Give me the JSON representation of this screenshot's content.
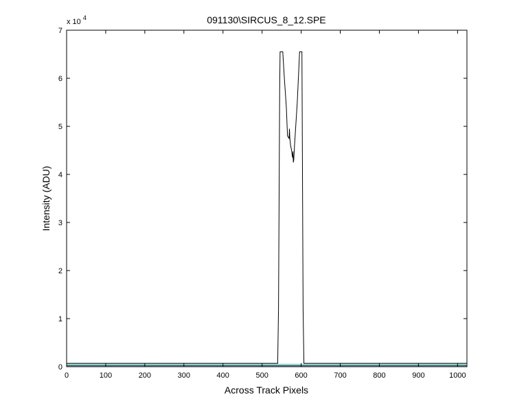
{
  "chart_data": {
    "type": "line",
    "title": "091130\\SIRCUS_8_12.SPE",
    "xlabel": "Across Track Pixels",
    "ylabel": "Intensity (ADU)",
    "y_exponent_base": "x 10",
    "y_exponent_power": "4",
    "xlim": [
      0,
      1024
    ],
    "ylim": [
      0,
      70000
    ],
    "x_ticks": [
      0,
      100,
      200,
      300,
      400,
      500,
      600,
      700,
      800,
      900,
      1000
    ],
    "y_ticks": [
      0,
      1,
      2,
      3,
      4,
      5,
      6,
      7
    ],
    "y_tick_scale": 10000,
    "grid": false,
    "colors": {
      "background": "#ffffff",
      "axes": "#000000",
      "series_main": "#000000",
      "series_baseline": "#00c8d2"
    },
    "series": [
      {
        "color": "#000000",
        "x": [
          0,
          540,
          542,
          545,
          546,
          548,
          553,
          557,
          562,
          565,
          569,
          570,
          571,
          573,
          575,
          577,
          578,
          579,
          580,
          581,
          583,
          590,
          596,
          598,
          602,
          605,
          607,
          608,
          1024
        ],
        "y": [
          700,
          700,
          12000,
          58000,
          65500,
          65500,
          65500,
          60000,
          54000,
          48000,
          47500,
          49500,
          47500,
          46000,
          45200,
          44000,
          43500,
          44800,
          42500,
          43000,
          46000,
          55000,
          65500,
          65500,
          65500,
          12000,
          700,
          700,
          700
        ]
      },
      {
        "color": "#00c8d2",
        "x": [
          0,
          1024
        ],
        "y": [
          500,
          500
        ]
      },
      {
        "color": "#000000",
        "x": [
          0,
          1024
        ],
        "y": [
          200,
          200
        ]
      }
    ]
  }
}
